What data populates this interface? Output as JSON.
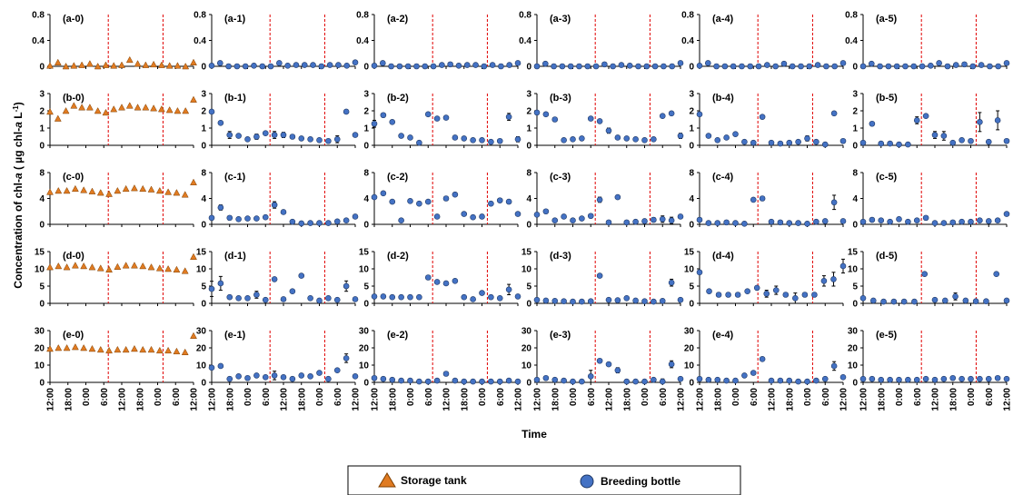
{
  "figure": {
    "ylabel_pre": "Concentration of chl-",
    "ylabel_italic": "a",
    "ylabel_mid": " ( µg chl-",
    "ylabel_italic2": "a",
    "ylabel_post": " L",
    "ylabel_sup": "-1",
    "ylabel_end": ")",
    "xlabel": "Time"
  },
  "legend": {
    "storage_label": "Storage tank",
    "bottle_label": "Breeding bottle"
  },
  "colors": {
    "storage": "#E07B22",
    "bottle": "#4472C4",
    "marker_edge": "#1F3864",
    "storage_edge": "#7F3F00",
    "vline": "#E00000"
  },
  "chart_data": {
    "type": "scatter",
    "x_tick_labels": [
      "12:00",
      "18:00",
      "0:00",
      "6:00",
      "12:00",
      "18:00",
      "0:00",
      "6:00",
      "12:00"
    ],
    "vlines_at": [
      6.5,
      12.6
    ],
    "rows": [
      {
        "ylim": [
          0,
          0.8
        ],
        "yticks": [
          "0",
          "0.4",
          "0.8"
        ],
        "yvals": [
          0,
          0.4,
          0.8
        ]
      },
      {
        "ylim": [
          0,
          3
        ],
        "yticks": [
          "0",
          "1",
          "2",
          "3"
        ],
        "yvals": [
          0,
          1,
          2,
          3
        ]
      },
      {
        "ylim": [
          0,
          8
        ],
        "yticks": [
          "0",
          "4",
          "8"
        ],
        "yvals": [
          0,
          4,
          8
        ]
      },
      {
        "ylim": [
          0,
          15
        ],
        "yticks": [
          "0",
          "5",
          "10",
          "15"
        ],
        "yvals": [
          0,
          5,
          10,
          15
        ]
      },
      {
        "ylim": [
          0,
          30
        ],
        "yticks": [
          "0",
          "10",
          "20",
          "30"
        ],
        "yvals": [
          0,
          10,
          20,
          30
        ]
      }
    ],
    "panels": [
      {
        "label": "(a-0)",
        "kind": "storage",
        "values": [
          0.01,
          0.06,
          0.0,
          0.01,
          0.02,
          0.04,
          0.0,
          0.02,
          0.01,
          0.02,
          0.1,
          0.04,
          0.02,
          0.03,
          0.02,
          0.01,
          0.01,
          0.0,
          0.06
        ]
      },
      {
        "label": "(a-1)",
        "kind": "bottle",
        "values": [
          0.01,
          0.05,
          0.0,
          0.0,
          0.0,
          0.01,
          0.0,
          0.0,
          0.05,
          0.01,
          0.02,
          0.02,
          0.02,
          0.0,
          0.02,
          0.02,
          0.01,
          0.06
        ]
      },
      {
        "label": "(a-2)",
        "kind": "bottle",
        "values": [
          0.01,
          0.05,
          0.0,
          0.0,
          0.0,
          0.0,
          0.0,
          0.0,
          0.02,
          0.03,
          0.01,
          0.02,
          0.02,
          0.0,
          0.02,
          0.0,
          0.02,
          0.05
        ]
      },
      {
        "label": "(a-3)",
        "kind": "bottle",
        "values": [
          0.0,
          0.04,
          0.0,
          0.0,
          0.0,
          0.0,
          0.0,
          0.0,
          0.03,
          0.0,
          0.02,
          0.01,
          0.0,
          0.0,
          0.0,
          0.0,
          0.0,
          0.05
        ]
      },
      {
        "label": "(a-4)",
        "kind": "bottle",
        "values": [
          0.01,
          0.05,
          0.0,
          0.0,
          0.0,
          0.0,
          0.0,
          0.0,
          0.02,
          0.0,
          0.04,
          0.0,
          0.0,
          0.0,
          0.02,
          0.0,
          0.0,
          0.05
        ]
      },
      {
        "label": "(a-5)",
        "kind": "bottle",
        "values": [
          0.0,
          0.04,
          0.0,
          0.0,
          0.0,
          0.0,
          0.0,
          0.0,
          0.01,
          0.05,
          0.0,
          0.02,
          0.03,
          0.0,
          0.02,
          0.0,
          0.0,
          0.05
        ]
      },
      {
        "label": "(b-0)",
        "kind": "storage",
        "values": [
          1.95,
          1.55,
          2.0,
          2.3,
          2.2,
          2.2,
          2.0,
          1.9,
          2.1,
          2.2,
          2.3,
          2.2,
          2.2,
          2.15,
          2.1,
          2.05,
          2.0,
          2.0,
          2.65
        ]
      },
      {
        "label": "(b-1)",
        "kind": "bottle",
        "values": [
          1.95,
          1.3,
          0.6,
          0.55,
          0.35,
          0.5,
          0.7,
          0.6,
          0.6,
          0.5,
          0.4,
          0.35,
          0.3,
          0.25,
          0.35,
          1.95,
          0.6
        ],
        "errors": [
          0,
          0,
          0.2,
          0,
          0,
          0.15,
          0,
          0.2,
          0.15,
          0,
          0,
          0,
          0,
          0,
          0.2,
          0.1,
          0
        ]
      },
      {
        "label": "(b-2)",
        "kind": "bottle",
        "values": [
          1.25,
          1.75,
          1.35,
          0.55,
          0.45,
          0.15,
          1.8,
          1.55,
          1.6,
          0.45,
          0.4,
          0.3,
          0.3,
          0.2,
          0.25,
          1.65,
          0.35
        ],
        "errors": [
          0.2,
          0,
          0,
          0,
          0,
          0,
          0,
          0,
          0,
          0,
          0,
          0,
          0,
          0,
          0,
          0.2,
          0.15
        ]
      },
      {
        "label": "(b-3)",
        "kind": "bottle",
        "values": [
          1.9,
          1.8,
          1.5,
          0.3,
          0.35,
          0.4,
          1.55,
          1.4,
          0.85,
          0.45,
          0.4,
          0.35,
          0.3,
          0.35,
          1.7,
          1.85,
          0.55
        ],
        "errors": [
          0,
          0,
          0,
          0,
          0,
          0,
          0,
          0,
          0.15,
          0,
          0,
          0,
          0,
          0,
          0,
          0,
          0.15
        ]
      },
      {
        "label": "(b-4)",
        "kind": "bottle",
        "values": [
          1.8,
          0.55,
          0.3,
          0.45,
          0.65,
          0.2,
          0.15,
          1.65,
          0.15,
          0.1,
          0.15,
          0.2,
          0.4,
          0.2,
          0.05,
          1.85,
          0.25
        ],
        "errors": [
          0,
          0,
          0,
          0,
          0,
          0,
          0,
          0,
          0,
          0,
          0,
          0,
          0.15,
          0,
          0,
          0,
          0
        ]
      },
      {
        "label": "(b-5)",
        "kind": "bottle",
        "values": [
          0.15,
          1.25,
          0.1,
          0.1,
          0.05,
          0.05,
          1.45,
          1.7,
          0.6,
          0.55,
          0.15,
          0.3,
          0.25,
          1.35,
          0.2,
          1.45,
          0.25
        ],
        "errors": [
          0,
          0,
          0,
          0,
          0,
          0,
          0.2,
          0,
          0.2,
          0.25,
          0,
          0,
          0,
          0.55,
          0,
          0.55,
          0
        ]
      },
      {
        "label": "(c-0)",
        "kind": "storage",
        "values": [
          5.0,
          5.2,
          5.2,
          5.5,
          5.3,
          5.1,
          4.9,
          4.7,
          5.2,
          5.5,
          5.6,
          5.5,
          5.4,
          5.2,
          5.0,
          4.9,
          4.6,
          6.5
        ]
      },
      {
        "label": "(c-1)",
        "kind": "bottle",
        "values": [
          1.0,
          2.6,
          1.0,
          0.8,
          0.9,
          0.9,
          1.1,
          3.0,
          1.9,
          0.4,
          0.15,
          0.2,
          0.2,
          0.2,
          0.45,
          0.6,
          1.2
        ],
        "errors": [
          0,
          0.4,
          0,
          0,
          0,
          0,
          0,
          0.5,
          0,
          0,
          0,
          0,
          0,
          0,
          0,
          0,
          0
        ]
      },
      {
        "label": "(c-2)",
        "kind": "bottle",
        "values": [
          4.2,
          4.8,
          3.5,
          0.6,
          3.6,
          3.2,
          3.5,
          1.2,
          4.0,
          4.6,
          1.6,
          1.1,
          1.2,
          3.2,
          3.7,
          3.5,
          1.6
        ],
        "errors": [
          0,
          0,
          0,
          0,
          0,
          0,
          0,
          0,
          0,
          0,
          0,
          0,
          0.3,
          0,
          0,
          0.3,
          0
        ]
      },
      {
        "label": "(c-3)",
        "kind": "bottle",
        "values": [
          1.5,
          2.0,
          0.6,
          1.2,
          0.6,
          0.9,
          1.3,
          3.8,
          0.3,
          4.2,
          0.3,
          0.4,
          0.5,
          0.7,
          0.8,
          0.6,
          1.2
        ],
        "errors": [
          0,
          0,
          0,
          0,
          0,
          0,
          0,
          0.4,
          0,
          0,
          0,
          0,
          0,
          0.3,
          0.5,
          0.5,
          0
        ]
      },
      {
        "label": "(c-4)",
        "kind": "bottle",
        "values": [
          0.7,
          0.2,
          0.2,
          0.3,
          0.2,
          0.1,
          3.8,
          4.0,
          0.4,
          0.3,
          0.2,
          0.2,
          0.1,
          0.4,
          0.5,
          3.4,
          0.5
        ],
        "errors": [
          0,
          0,
          0,
          0,
          0,
          0,
          0,
          0,
          0,
          0,
          0,
          0,
          0,
          0,
          0,
          1.1,
          0
        ]
      },
      {
        "label": "(c-5)",
        "kind": "bottle",
        "values": [
          0.4,
          0.7,
          0.6,
          0.4,
          0.8,
          0.4,
          0.6,
          1.0,
          0.2,
          0.2,
          0.3,
          0.4,
          0.4,
          0.6,
          0.5,
          0.6,
          1.6
        ],
        "errors": [
          0,
          0,
          0,
          0,
          0,
          0,
          0,
          0,
          0,
          0,
          0,
          0,
          0,
          0,
          0,
          0,
          0
        ]
      },
      {
        "label": "(d-0)",
        "kind": "storage",
        "values": [
          10.5,
          10.8,
          10.5,
          11.0,
          10.8,
          10.5,
          10.2,
          9.8,
          10.6,
          11.0,
          11.0,
          10.8,
          10.5,
          10.2,
          10.0,
          9.8,
          9.4,
          13.5
        ]
      },
      {
        "label": "(d-1)",
        "kind": "bottle",
        "values": [
          4.2,
          5.8,
          1.8,
          1.5,
          1.5,
          2.5,
          1.0,
          7.0,
          1.2,
          3.5,
          8.0,
          1.5,
          0.8,
          1.5,
          1.0,
          5.0,
          1.2
        ],
        "errors": [
          2.2,
          2.0,
          0,
          0,
          0,
          1.0,
          0,
          0,
          0,
          0,
          0,
          0,
          0,
          0,
          0,
          1.5,
          0
        ]
      },
      {
        "label": "(d-2)",
        "kind": "bottle",
        "values": [
          2.0,
          2.0,
          1.8,
          1.8,
          1.8,
          1.8,
          7.5,
          6.2,
          5.8,
          6.5,
          1.8,
          1.2,
          3.0,
          1.8,
          1.5,
          4.0,
          2.0
        ],
        "errors": [
          0,
          0,
          0,
          0,
          0,
          0,
          0,
          0,
          0,
          0,
          0,
          0,
          0,
          0,
          0,
          1.5,
          0
        ]
      },
      {
        "label": "(d-3)",
        "kind": "bottle",
        "values": [
          1.0,
          0.8,
          0.7,
          0.6,
          0.5,
          0.5,
          0.6,
          8.0,
          1.0,
          0.9,
          1.5,
          0.8,
          0.6,
          0.5,
          0.7,
          6.0,
          1.0
        ],
        "errors": [
          0,
          0,
          0,
          0,
          0,
          0,
          0,
          0,
          0,
          0,
          0,
          0,
          0,
          0,
          0,
          1.0,
          0
        ]
      },
      {
        "label": "(d-4)",
        "kind": "bottle",
        "values": [
          9.0,
          3.5,
          2.5,
          2.5,
          2.5,
          3.5,
          4.5,
          2.8,
          3.8,
          2.5,
          1.5,
          2.5,
          2.5,
          6.5,
          7.0,
          10.8
        ],
        "errors": [
          0,
          0,
          0,
          0,
          0,
          0,
          0,
          1.0,
          1.2,
          0,
          1.5,
          0,
          0,
          1.5,
          2.0,
          2.0
        ]
      },
      {
        "label": "(d-5)",
        "kind": "bottle",
        "values": [
          1.5,
          0.8,
          0.5,
          0.5,
          0.5,
          0.5,
          8.5,
          1.0,
          0.8,
          2.0,
          0.8,
          0.6,
          0.6,
          8.5,
          0.8
        ],
        "errors": [
          0,
          0,
          0,
          0,
          0,
          0,
          0,
          0,
          0,
          1.0,
          0,
          0,
          0,
          0,
          0
        ]
      },
      {
        "label": "(e-0)",
        "kind": "storage",
        "values": [
          19.5,
          20.0,
          20.0,
          20.5,
          20.0,
          19.5,
          19.0,
          18.5,
          19.0,
          19.0,
          19.5,
          19.0,
          19.0,
          18.5,
          18.5,
          18.0,
          17.5,
          27.0
        ]
      },
      {
        "label": "(e-1)",
        "kind": "bottle",
        "values": [
          8.5,
          9.5,
          2.0,
          3.5,
          2.5,
          4.0,
          3.0,
          4.0,
          3.0,
          2.0,
          4.0,
          3.5,
          5.5,
          2.0,
          7.0,
          14.0,
          3.5
        ],
        "errors": [
          0,
          0,
          0,
          0,
          0,
          0,
          0,
          2.5,
          0,
          0,
          0,
          0,
          0,
          0,
          0,
          2.5,
          0
        ]
      },
      {
        "label": "(e-2)",
        "kind": "bottle",
        "values": [
          2.5,
          2.0,
          1.5,
          1.0,
          1.0,
          0.5,
          0.5,
          1.0,
          5.0,
          1.0,
          0.5,
          0.5,
          0.5,
          0.5,
          0.5,
          1.0,
          0.5
        ],
        "errors": [
          0,
          0,
          0,
          0,
          0,
          0,
          0,
          0,
          0,
          0,
          0,
          0,
          0,
          0,
          0,
          0,
          0
        ]
      },
      {
        "label": "(e-3)",
        "kind": "bottle",
        "values": [
          1.5,
          2.5,
          1.5,
          1.0,
          0.5,
          0.5,
          3.5,
          12.5,
          10.5,
          7.0,
          0.5,
          0.5,
          0.5,
          1.5,
          0.5,
          10.5,
          2.0
        ],
        "errors": [
          0,
          0,
          0,
          0,
          0,
          0,
          3.5,
          0,
          0,
          1.5,
          0,
          0,
          0,
          0,
          1.5,
          2.0,
          0
        ]
      },
      {
        "label": "(e-4)",
        "kind": "bottle",
        "values": [
          2.0,
          1.5,
          1.5,
          1.0,
          1.0,
          4.0,
          5.5,
          13.5,
          1.0,
          1.0,
          1.0,
          0.5,
          0.5,
          1.0,
          2.0,
          9.5,
          3.0
        ],
        "errors": [
          0,
          0,
          0,
          0,
          0,
          0,
          0,
          0,
          0,
          0,
          0,
          0,
          0,
          0,
          0,
          2.5,
          0
        ]
      },
      {
        "label": "(e-5)",
        "kind": "bottle",
        "values": [
          2.0,
          2.0,
          1.5,
          1.5,
          1.5,
          1.5,
          1.5,
          2.0,
          1.5,
          2.0,
          2.5,
          2.0,
          2.0,
          2.0,
          2.0,
          2.5,
          2.0
        ],
        "errors": [
          0,
          0,
          0,
          0,
          0,
          0,
          0,
          0,
          0,
          0,
          0,
          0,
          0,
          0,
          0,
          0,
          0
        ]
      }
    ]
  }
}
